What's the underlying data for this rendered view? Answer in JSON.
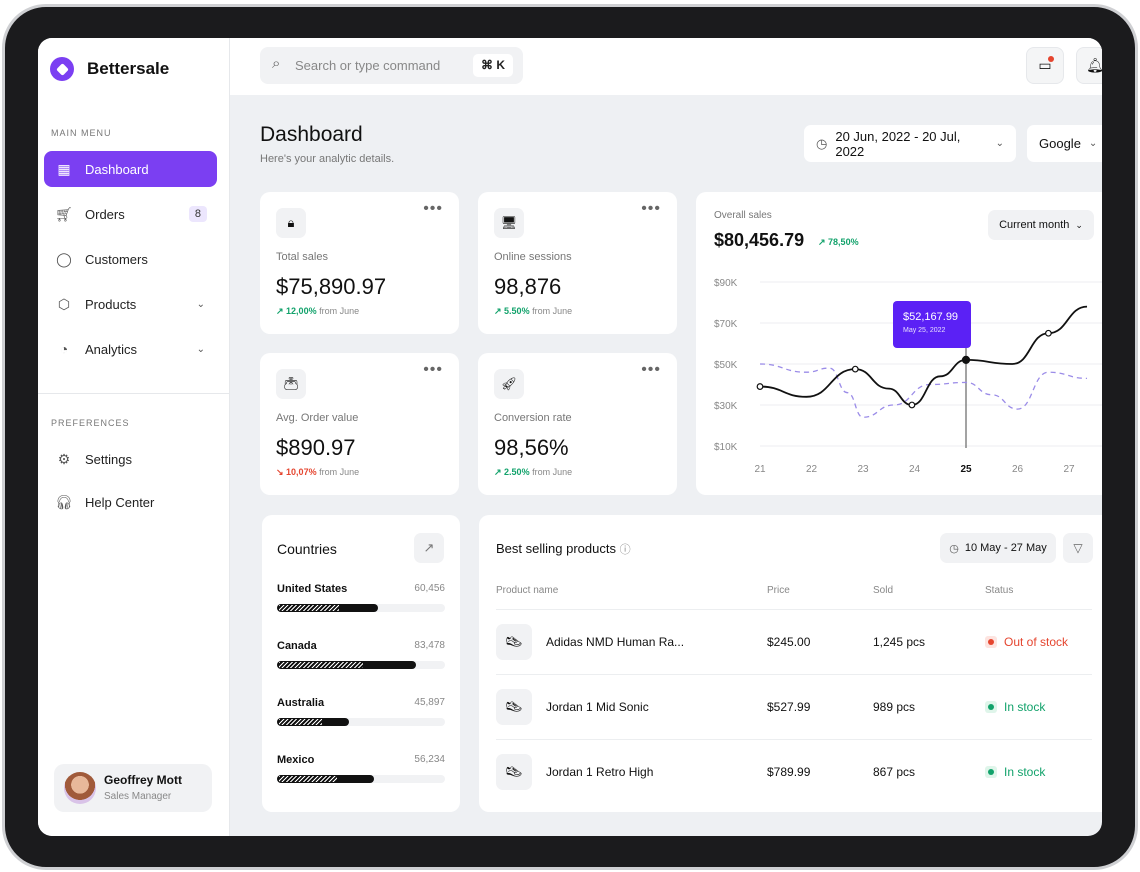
{
  "app": {
    "brand": "Bettersale"
  },
  "sidebar": {
    "main_menu_label": "MAIN MENU",
    "items": [
      {
        "label": "Dashboard",
        "icon": "grid-icon",
        "active": true
      },
      {
        "label": "Orders",
        "icon": "cart-icon",
        "badge": "8"
      },
      {
        "label": "Customers",
        "icon": "user-icon"
      },
      {
        "label": "Products",
        "icon": "box-icon",
        "expandable": true
      },
      {
        "label": "Analytics",
        "icon": "pie-chart-icon",
        "expandable": true
      }
    ],
    "preferences_label": "PREFERENCES",
    "pref_items": [
      {
        "label": "Settings",
        "icon": "gear-icon"
      },
      {
        "label": "Help Center",
        "icon": "headset-icon"
      }
    ],
    "user": {
      "name": "Geoffrey Mott",
      "role": "Sales Manager"
    }
  },
  "topbar": {
    "search_placeholder": "Search or type command",
    "shortcut": "⌘ K"
  },
  "header": {
    "title": "Dashboard",
    "subtitle": "Here's your analytic details.",
    "date_range": "20 Jun, 2022 - 20 Jul, 2022",
    "source": "Google"
  },
  "stats": [
    {
      "label": "Total sales",
      "value": "$75,890.97",
      "change": "12,00%",
      "trend": "up",
      "suffix": "from June",
      "icon": "shopping-bag-icon"
    },
    {
      "label": "Online sessions",
      "value": "98,876",
      "change": "5.50%",
      "trend": "up",
      "suffix": "from June",
      "icon": "monitor-icon"
    },
    {
      "label": "Avg. Order value",
      "value": "$890.97",
      "change": "10,07%",
      "trend": "down",
      "suffix": "from June",
      "icon": "wallet-icon"
    },
    {
      "label": "Conversion rate",
      "value": "98,56%",
      "change": "2.50%",
      "trend": "up",
      "suffix": "from June",
      "icon": "rocket-icon"
    }
  ],
  "overall": {
    "label": "Overall sales",
    "value": "$80,456.79",
    "change": "78,50%",
    "period": "Current month",
    "tooltip_value": "$52,167.99",
    "tooltip_date": "May 25, 2022"
  },
  "chart_data": {
    "type": "line",
    "x": [
      21,
      22,
      23,
      24,
      25,
      26,
      27
    ],
    "x_tick_labels": [
      "21",
      "22",
      "23",
      "24",
      "25",
      "26",
      "27"
    ],
    "highlight_x": "25",
    "y_tick_labels": [
      "$90K",
      "$70K",
      "$50K",
      "$30K",
      "$10K"
    ],
    "ylim": [
      10,
      90
    ],
    "grid": true,
    "series": [
      {
        "style": "solid",
        "color": "#111111",
        "points": [
          [
            21,
            39
          ],
          [
            21.9,
            34
          ],
          [
            22.85,
            47.5
          ],
          [
            23.5,
            38
          ],
          [
            23.95,
            30
          ],
          [
            24.5,
            44
          ],
          [
            25,
            52
          ],
          [
            25.9,
            50
          ],
          [
            26.6,
            65
          ],
          [
            27.35,
            78
          ]
        ],
        "markers": [
          21,
          22.85,
          23.95,
          25,
          26.6
        ]
      },
      {
        "style": "dashed",
        "color": "#9b8ce8",
        "points": [
          [
            21,
            50
          ],
          [
            21.9,
            46
          ],
          [
            22.35,
            48
          ],
          [
            22.7,
            36
          ],
          [
            23,
            24
          ],
          [
            23.6,
            30
          ],
          [
            24.3,
            40
          ],
          [
            25,
            41
          ],
          [
            25.5,
            35
          ],
          [
            26,
            28
          ],
          [
            26.6,
            46
          ],
          [
            27.35,
            43
          ]
        ]
      }
    ]
  },
  "countries": {
    "title": "Countries",
    "items": [
      {
        "name": "United States",
        "value": "60,456",
        "share": 0.6
      },
      {
        "name": "Canada",
        "value": "83,478",
        "share": 0.83
      },
      {
        "name": "Australia",
        "value": "45,897",
        "share": 0.43
      },
      {
        "name": "Mexico",
        "value": "56,234",
        "share": 0.58
      }
    ]
  },
  "products": {
    "title": "Best selling products",
    "date_range": "10 May - 27 May",
    "columns": [
      "Product name",
      "Price",
      "Sold",
      "Status"
    ],
    "rows": [
      {
        "name": "Adidas NMD Human Ra...",
        "price": "$245.00",
        "sold": "1,245 pcs",
        "status": "Out of stock",
        "ok": false
      },
      {
        "name": "Jordan 1 Mid Sonic",
        "price": "$527.99",
        "sold": "989 pcs",
        "status": "In stock",
        "ok": true
      },
      {
        "name": "Jordan 1 Retro High",
        "price": "$789.99",
        "sold": "867 pcs",
        "status": "In stock",
        "ok": true
      }
    ]
  },
  "colors": {
    "accent": "#7b3ff2",
    "up": "#12a26b",
    "down": "#e5452f",
    "bg": "#eef0f3"
  }
}
